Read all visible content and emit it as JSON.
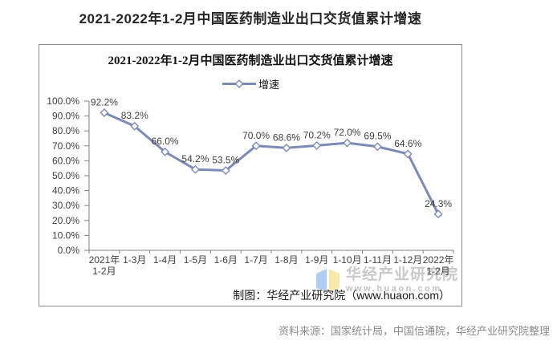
{
  "page": {
    "title": "2021-2022年1-2月中国医药制造业出口交货值累计增速",
    "source_note": "资料来源：国家统计局，中国信通院，华经产业研究院整理"
  },
  "chart": {
    "title": "2021-2022年1-2月中国医药制造业出口交货值累计增速",
    "legend_label": "增速",
    "caption": "制图：华经产业研究院（www.huaon.com）",
    "watermark": {
      "brand": "华经产业研究院",
      "url": "www.huaon.com",
      "logo_colors": {
        "left_page": "#aecdf0",
        "right_page": "#f7e9ab"
      }
    }
  },
  "chart_data": {
    "type": "line",
    "title": "2021-2022年1-2月中国医药制造业出口交货值累计增速",
    "categories": [
      "2021年\n1-2月",
      "1-3月",
      "1-4月",
      "1-5月",
      "1-6月",
      "1-7月",
      "1-8月",
      "1-9月",
      "1-10月",
      "1-11月",
      "1-12月",
      "2022年\n1-2月"
    ],
    "series": [
      {
        "name": "增速",
        "values": [
          92.2,
          83.2,
          66.0,
          54.2,
          53.5,
          70.0,
          68.6,
          70.2,
          72.0,
          69.5,
          64.6,
          24.3
        ]
      }
    ],
    "data_labels": [
      "92.2%",
      "83.2%",
      "66.0%",
      "54.2%",
      "53.5%",
      "70.0%",
      "68.6%",
      "70.2%",
      "72.0%",
      "69.5%",
      "64.6%",
      "24.3%"
    ],
    "unit": "%",
    "ylim": [
      0,
      100
    ],
    "ytick_step": 10,
    "ytick_labels": [
      "0.0%",
      "10.0%",
      "20.0%",
      "30.0%",
      "40.0%",
      "50.0%",
      "60.0%",
      "70.0%",
      "80.0%",
      "90.0%",
      "100.0%"
    ],
    "grid": false,
    "legend_position": "top-center",
    "line_color": "#7c8ab6",
    "marker": "diamond-white-fill",
    "axis_color": "#808080",
    "label_color": "#3f3f3f"
  }
}
